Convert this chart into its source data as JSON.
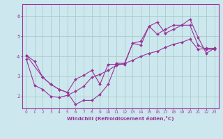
{
  "xlabel": "Windchill (Refroidissement éolien,°C)",
  "bg_color": "#cce8ee",
  "line_color": "#993399",
  "grid_color": "#aacccc",
  "xlim": [
    -0.5,
    23.5
  ],
  "ylim": [
    1.4,
    6.6
  ],
  "yticks": [
    2,
    3,
    4,
    5,
    6
  ],
  "xticks": [
    0,
    1,
    2,
    3,
    4,
    5,
    6,
    7,
    8,
    9,
    10,
    11,
    12,
    13,
    14,
    15,
    16,
    17,
    18,
    19,
    20,
    21,
    22,
    23
  ],
  "series1_x": [
    0,
    1,
    2,
    3,
    4,
    5,
    6,
    7,
    8,
    9,
    10,
    11,
    12,
    13,
    14,
    15,
    16,
    17,
    18,
    19,
    20,
    21,
    22,
    23
  ],
  "series1_y": [
    4.05,
    3.75,
    2.95,
    2.6,
    2.35,
    2.2,
    1.6,
    1.8,
    1.8,
    2.1,
    2.6,
    3.65,
    3.65,
    4.65,
    4.75,
    5.5,
    5.7,
    5.15,
    5.35,
    5.55,
    5.85,
    4.95,
    4.15,
    4.4
  ],
  "series2_x": [
    0,
    2,
    3,
    4,
    5,
    6,
    7,
    8,
    9,
    10,
    11,
    12,
    13,
    14,
    15,
    16,
    17,
    18,
    19,
    20,
    21,
    22,
    23
  ],
  "series2_y": [
    4.05,
    2.95,
    2.6,
    2.35,
    2.2,
    2.85,
    3.05,
    3.3,
    2.6,
    3.6,
    3.6,
    3.6,
    4.65,
    4.55,
    5.5,
    5.1,
    5.35,
    5.55,
    5.55,
    5.55,
    4.55,
    4.35,
    4.35
  ],
  "series3_x": [
    0,
    1,
    2,
    3,
    4,
    5,
    6,
    7,
    8,
    9,
    10,
    11,
    12,
    13,
    14,
    15,
    16,
    17,
    18,
    19,
    20,
    21,
    22,
    23
  ],
  "series3_y": [
    3.85,
    2.55,
    2.35,
    2.0,
    1.95,
    2.05,
    2.25,
    2.5,
    2.95,
    3.1,
    3.3,
    3.55,
    3.65,
    3.8,
    4.0,
    4.15,
    4.25,
    4.45,
    4.6,
    4.7,
    4.85,
    4.35,
    4.4,
    4.4
  ]
}
